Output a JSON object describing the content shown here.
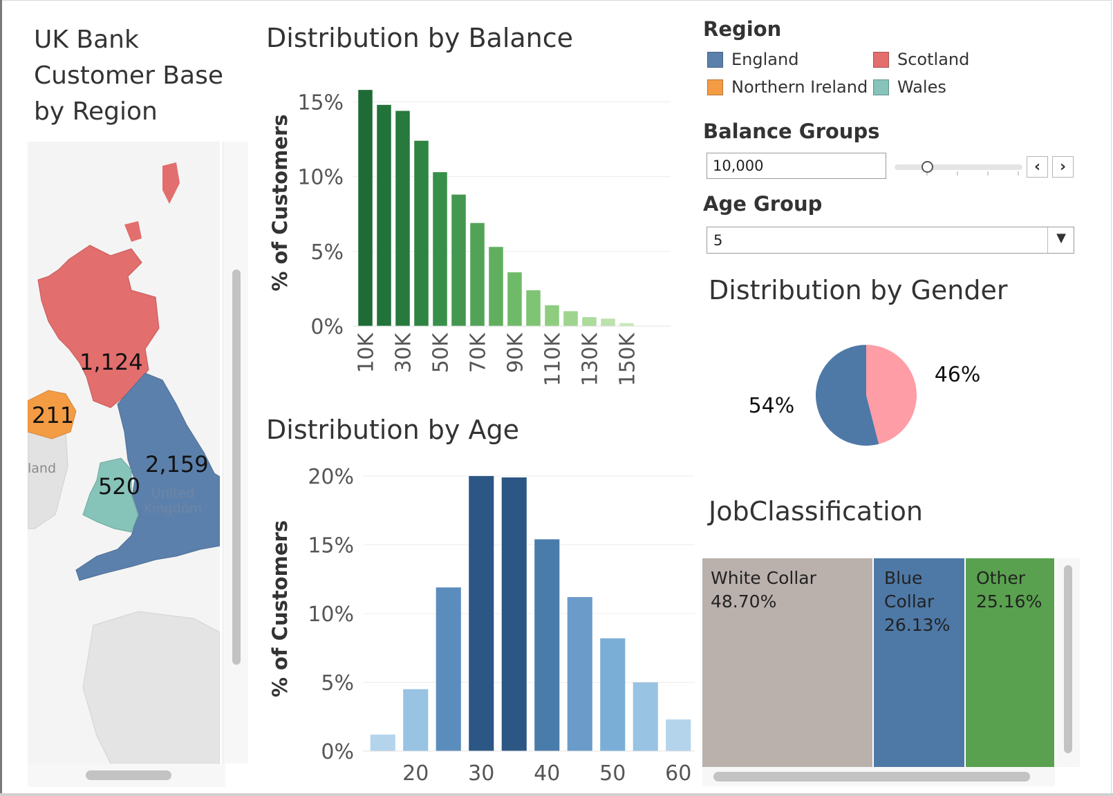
{
  "dashboard": {
    "title": "UK Bank Customer Base by Region"
  },
  "map": {
    "region_values": {
      "scotland": "1,124",
      "northern_ireland": "211",
      "england": "2,159",
      "wales": "520"
    },
    "basemap_labels": {
      "country": "United Kingdom",
      "partial": "land"
    }
  },
  "legend": {
    "title": "Region",
    "items": [
      {
        "label": "England",
        "color": "#5b80ab"
      },
      {
        "label": "Scotland",
        "color": "#e26e6e"
      },
      {
        "label": "Northern Ireland",
        "color": "#f39c44"
      },
      {
        "label": "Wales",
        "color": "#86c3b8"
      }
    ]
  },
  "filters": {
    "balance_label": "Balance Groups",
    "balance_value": "10,000",
    "age_label": "Age Group",
    "age_value": "5",
    "prev_icon": "chevron-left-icon",
    "next_icon": "chevron-right-icon",
    "dropdown_icon": "caret-down-icon"
  },
  "chart_data": [
    {
      "id": "balance",
      "type": "bar",
      "title": "Distribution by Balance",
      "ylabel": "% of Customers",
      "xlabel": "",
      "ylim": [
        0,
        16.5
      ],
      "yticks": [
        0,
        5,
        10,
        15
      ],
      "ytick_labels": [
        "0%",
        "5%",
        "10%",
        "15%"
      ],
      "x": [
        10,
        20,
        30,
        40,
        50,
        60,
        70,
        80,
        90,
        100,
        110,
        120,
        130,
        140,
        150
      ],
      "xtick_labels": [
        "10K",
        "30K",
        "50K",
        "70K",
        "90K",
        "110K",
        "130K",
        "150K"
      ],
      "xtick_values": [
        10,
        30,
        50,
        70,
        90,
        110,
        130,
        150
      ],
      "values": [
        15.8,
        14.8,
        14.4,
        12.4,
        10.3,
        8.8,
        6.9,
        5.3,
        3.6,
        2.4,
        1.4,
        1.0,
        0.6,
        0.5,
        0.2
      ],
      "colors": [
        "#1e6b35",
        "#22733a",
        "#27793d",
        "#2e8443",
        "#378f49",
        "#44974f",
        "#52a357",
        "#5faf5f",
        "#6fba69",
        "#7fc474",
        "#8ecd80",
        "#9ed48e",
        "#acdb9c",
        "#bbe2ab",
        "#c8e8ba"
      ],
      "grid": true
    },
    {
      "id": "age",
      "type": "bar",
      "title": "Distribution by Age",
      "ylabel": "% of Customers",
      "xlabel": "",
      "ylim": [
        0,
        20.7
      ],
      "yticks": [
        0,
        5,
        10,
        15,
        20
      ],
      "ytick_labels": [
        "0%",
        "5%",
        "10%",
        "15%",
        "20%"
      ],
      "x": [
        15,
        20,
        25,
        30,
        35,
        40,
        45,
        50,
        55,
        60
      ],
      "xtick_labels": [
        "20",
        "30",
        "40",
        "50",
        "60"
      ],
      "xtick_values": [
        20,
        30,
        40,
        50,
        60
      ],
      "values": [
        1.2,
        4.5,
        11.9,
        20.0,
        19.9,
        15.4,
        11.2,
        8.2,
        5.0,
        2.3
      ],
      "colors": [
        "#b4d4ec",
        "#98c3e3",
        "#5a8dbc",
        "#2c5784",
        "#2c5784",
        "#4a7cab",
        "#6a9bc9",
        "#7aaed6",
        "#98c3e3",
        "#b4d4ec"
      ],
      "grid": true
    },
    {
      "id": "gender",
      "type": "pie",
      "title": "Distribution by Gender",
      "slices": [
        {
          "label": "46%",
          "value": 46,
          "color": "#ff9da7"
        },
        {
          "label": "54%",
          "value": 54,
          "color": "#4e79a7"
        }
      ]
    },
    {
      "id": "job",
      "type": "treemap",
      "title": "JobClassification",
      "items": [
        {
          "name_lines": [
            "White",
            "Collar"
          ],
          "label": "White Collar",
          "pct": "48.70%",
          "value": 48.7,
          "color": "#bab0ac"
        },
        {
          "name_lines": [
            "Blue",
            "Collar"
          ],
          "label": "Blue Collar",
          "pct": "26.13%",
          "value": 26.13,
          "color": "#4e79a7"
        },
        {
          "name_lines": [
            "Other"
          ],
          "label": "Other",
          "pct": "25.16%",
          "value": 25.16,
          "color": "#59a14f"
        }
      ]
    }
  ]
}
